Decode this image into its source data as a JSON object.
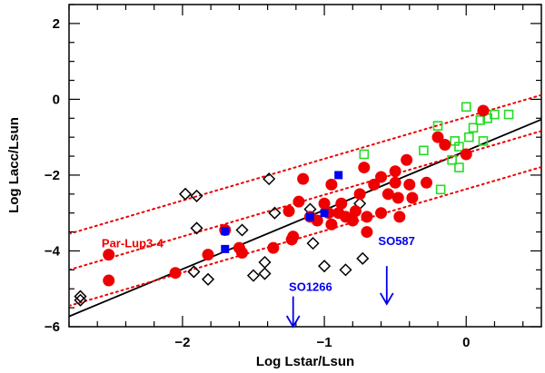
{
  "chart_data": {
    "type": "scatter",
    "title": "",
    "xlabel": "Log Lstar/Lsun",
    "ylabel": "Log Lacc/Lsun",
    "xlim": [
      -2.8,
      0.53
    ],
    "ylim": [
      -6,
      2.5
    ],
    "xticks": [
      -2,
      -1,
      0
    ],
    "xtick_labels": [
      "−2",
      "−1",
      "0"
    ],
    "yticks": [
      -6,
      -4,
      -2,
      0,
      2
    ],
    "ytick_labels": [
      "−6",
      "−4",
      "−2",
      "0",
      "2"
    ],
    "colors": {
      "red": "#ee0000",
      "blue": "#0000ee",
      "green": "#22dd22",
      "black": "#000000"
    },
    "series": [
      {
        "name": "filled red circles",
        "marker": "filled-circle",
        "color": "#ee0000",
        "points": [
          [
            -2.52,
            -4.1
          ],
          [
            -2.52,
            -4.78
          ],
          [
            -2.05,
            -4.58
          ],
          [
            -1.82,
            -4.1
          ],
          [
            -1.7,
            -3.45
          ],
          [
            -1.6,
            -3.92
          ],
          [
            -1.58,
            -4.05
          ],
          [
            -1.36,
            -3.92
          ],
          [
            -1.25,
            -2.95
          ],
          [
            -1.22,
            -3.62
          ],
          [
            -1.23,
            -3.7
          ],
          [
            -1.18,
            -2.7
          ],
          [
            -1.15,
            -2.1
          ],
          [
            -1.1,
            -3.1
          ],
          [
            -1.05,
            -3.2
          ],
          [
            -1.0,
            -2.75
          ],
          [
            -0.97,
            -3.0
          ],
          [
            -0.95,
            -2.25
          ],
          [
            -0.95,
            -3.3
          ],
          [
            -0.9,
            -3.0
          ],
          [
            -0.88,
            -2.75
          ],
          [
            -0.85,
            -3.1
          ],
          [
            -0.8,
            -3.2
          ],
          [
            -0.78,
            -2.95
          ],
          [
            -0.75,
            -2.5
          ],
          [
            -0.72,
            -1.8
          ],
          [
            -0.7,
            -3.1
          ],
          [
            -0.7,
            -3.5
          ],
          [
            -0.65,
            -2.25
          ],
          [
            -0.6,
            -2.05
          ],
          [
            -0.6,
            -3.0
          ],
          [
            -0.55,
            -2.5
          ],
          [
            -0.5,
            -1.9
          ],
          [
            -0.5,
            -2.2
          ],
          [
            -0.48,
            -2.6
          ],
          [
            -0.47,
            -3.1
          ],
          [
            -0.42,
            -1.6
          ],
          [
            -0.4,
            -2.25
          ],
          [
            -0.38,
            -2.6
          ],
          [
            -0.28,
            -2.2
          ],
          [
            -0.2,
            -1.0
          ],
          [
            -0.15,
            -1.2
          ],
          [
            0.0,
            -1.45
          ],
          [
            0.12,
            -0.3
          ]
        ]
      },
      {
        "name": "filled blue squares",
        "marker": "filled-square",
        "color": "#0000ee",
        "points": [
          [
            -1.7,
            -3.48
          ],
          [
            -1.7,
            -3.95
          ],
          [
            -1.1,
            -3.1
          ],
          [
            -1.0,
            -3.0
          ],
          [
            -0.9,
            -2.0
          ]
        ]
      },
      {
        "name": "open green squares",
        "marker": "open-square",
        "color": "#22dd22",
        "points": [
          [
            -0.72,
            -1.45
          ],
          [
            -0.18,
            -2.38
          ],
          [
            -0.3,
            -1.35
          ],
          [
            -0.2,
            -0.7
          ],
          [
            -0.1,
            -1.6
          ],
          [
            -0.08,
            -1.1
          ],
          [
            -0.05,
            -1.25
          ],
          [
            -0.05,
            -1.8
          ],
          [
            0.0,
            -0.2
          ],
          [
            0.02,
            -1.0
          ],
          [
            0.05,
            -0.75
          ],
          [
            0.1,
            -0.55
          ],
          [
            0.12,
            -1.1
          ],
          [
            0.15,
            -0.5
          ],
          [
            0.2,
            -0.4
          ],
          [
            0.3,
            -0.4
          ]
        ]
      },
      {
        "name": "open black diamonds",
        "marker": "open-diamond",
        "color": "#000000",
        "points": [
          [
            -2.72,
            -5.2
          ],
          [
            -2.72,
            -5.3
          ],
          [
            -1.98,
            -2.5
          ],
          [
            -1.92,
            -4.55
          ],
          [
            -1.9,
            -3.4
          ],
          [
            -1.9,
            -2.55
          ],
          [
            -1.82,
            -4.75
          ],
          [
            -1.58,
            -3.45
          ],
          [
            -1.5,
            -4.65
          ],
          [
            -1.42,
            -4.3
          ],
          [
            -1.42,
            -4.6
          ],
          [
            -1.39,
            -2.1
          ],
          [
            -1.35,
            -3.0
          ],
          [
            -1.1,
            -2.9
          ],
          [
            -1.08,
            -3.8
          ],
          [
            -1.0,
            -4.4
          ],
          [
            -0.85,
            -4.5
          ],
          [
            -0.75,
            -2.75
          ],
          [
            -0.73,
            -4.2
          ]
        ]
      }
    ],
    "lines": [
      {
        "name": "fit",
        "style": "solid",
        "color": "#000000",
        "slope": 1.56,
        "intercept": -1.36
      },
      {
        "name": "upper envelope",
        "style": "dotted",
        "color": "#ee0000",
        "slope": 1.1,
        "intercept": -0.47
      },
      {
        "name": "middle envelope",
        "style": "dotted",
        "color": "#ee0000",
        "slope": 1.1,
        "intercept": -1.42
      },
      {
        "name": "lower envelope",
        "style": "dotted",
        "color": "#ee0000",
        "slope": 1.1,
        "intercept": -2.37
      }
    ],
    "annotations": [
      {
        "text": "Par-Lup3-4",
        "color": "#ee0000",
        "x": -2.57,
        "y": -3.9
      },
      {
        "text": "SO1266",
        "color": "#0000ee",
        "x": -1.25,
        "y": -5.05
      },
      {
        "text": "SO587",
        "color": "#0000ee",
        "x": -0.62,
        "y": -3.85
      }
    ],
    "arrows": [
      {
        "name": "SO1266 upper limit",
        "color": "#0000ee",
        "x": -1.22,
        "y_from": -5.2,
        "y_to": -6.0
      },
      {
        "name": "SO587 upper limit",
        "color": "#0000ee",
        "x": -0.56,
        "y_from": -4.4,
        "y_to": -5.4
      }
    ]
  }
}
